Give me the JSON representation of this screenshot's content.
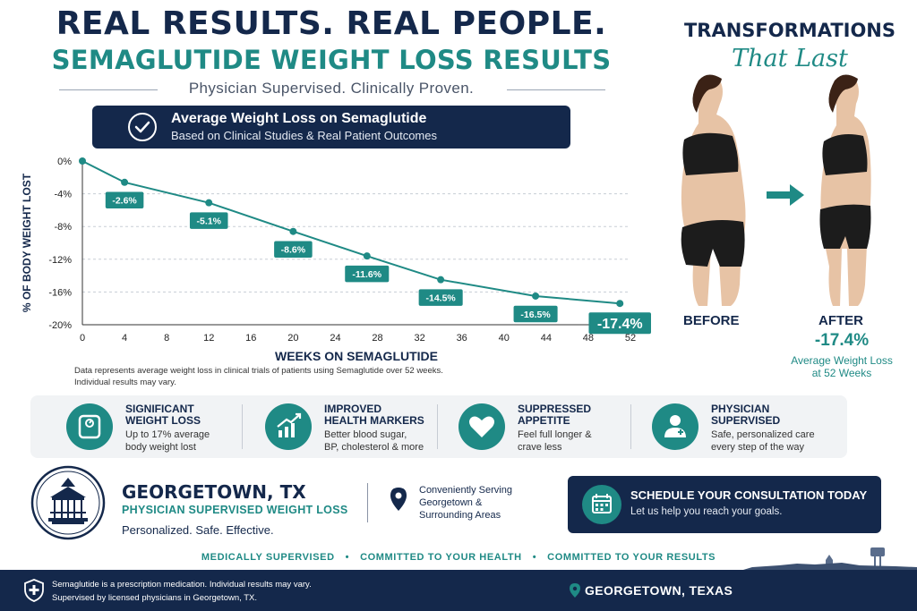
{
  "header": {
    "line1": "REAL RESULTS. REAL PEOPLE.",
    "line2": "SEMAGLUTIDE WEIGHT LOSS RESULTS",
    "tagline": "Physician Supervised. Clinically Proven."
  },
  "banner": {
    "title": "Average Weight Loss on Semaglutide",
    "subtitle": "Based on Clinical Studies & Real Patient Outcomes"
  },
  "chart_data": {
    "type": "line",
    "x": [
      0,
      4,
      12,
      20,
      27,
      34,
      43,
      51
    ],
    "values": [
      0,
      -2.6,
      -5.1,
      -8.6,
      -11.6,
      -14.5,
      -16.5,
      -17.4
    ],
    "point_labels": [
      "",
      "-2.6%",
      "-5.1%",
      "-8.6%",
      "-11.6%",
      "-14.5%",
      "-16.5%",
      "-17.4%"
    ],
    "xlabel": "WEEKS ON SEMAGLUTIDE",
    "ylabel": "% OF BODY WEIGHT LOST",
    "xticks": [
      "0",
      "4",
      "8",
      "12",
      "16",
      "20",
      "24",
      "28",
      "32",
      "36",
      "40",
      "44",
      "48",
      "52"
    ],
    "yticks": [
      "0%",
      "-4%",
      "-8%",
      "-12%",
      "-16%",
      "-20%"
    ],
    "xlim": [
      0,
      52
    ],
    "ylim": [
      -20,
      0
    ],
    "grid": true,
    "color": "#1f8a85"
  },
  "footnote": {
    "line1": "Data represents average weight loss in clinical trials of patients using Semaglutide over 52 weeks.",
    "line2": "Individual results may vary."
  },
  "transform": {
    "title": "TRANSFORMATIONS",
    "script": "That Last",
    "before_label": "BEFORE",
    "after_label": "AFTER",
    "after_pct": "-17.4%",
    "after_caption_1": "Average Weight Loss",
    "after_caption_2": "at 52 Weeks"
  },
  "features": [
    {
      "icon": "scale-icon",
      "title1": "SIGNIFICANT",
      "title2": "WEIGHT LOSS",
      "desc1": "Up to 17% average",
      "desc2": "body weight lost"
    },
    {
      "icon": "chart-up-icon",
      "title1": "IMPROVED",
      "title2": "HEALTH MARKERS",
      "desc1": "Better blood sugar,",
      "desc2": "BP, cholesterol & more"
    },
    {
      "icon": "heart-icon",
      "title1": "SUPPRESSED",
      "title2": "APPETITE",
      "desc1": "Feel full longer &",
      "desc2": "crave less"
    },
    {
      "icon": "doctor-icon",
      "title1": "PHYSICIAN",
      "title2": "SUPERVISED",
      "desc1": "Safe, personalized care",
      "desc2": "every step of the way"
    }
  ],
  "location": {
    "title": "GEORGETOWN, TX",
    "subtitle": "PHYSICIAN SUPERVISED WEIGHT LOSS",
    "tagline": "Personalized. Safe. Effective.",
    "serving1": "Conveniently Serving",
    "serving2": "Georgetown &",
    "serving3": "Surrounding Areas"
  },
  "cta": {
    "title": "SCHEDULE YOUR CONSULTATION TODAY",
    "subtitle": "Let us help you reach your goals."
  },
  "commitments": [
    "MEDICALLY SUPERVISED",
    "COMMITTED TO YOUR HEALTH",
    "COMMITTED TO YOUR RESULTS"
  ],
  "footer": {
    "line1": "Semaglutide is a prescription medication. Individual results may vary.",
    "line2": "Supervised by licensed physicians in Georgetown, TX.",
    "location": "GEORGETOWN, TEXAS"
  },
  "colors": {
    "navy": "#14284b",
    "teal": "#1f8a85"
  }
}
